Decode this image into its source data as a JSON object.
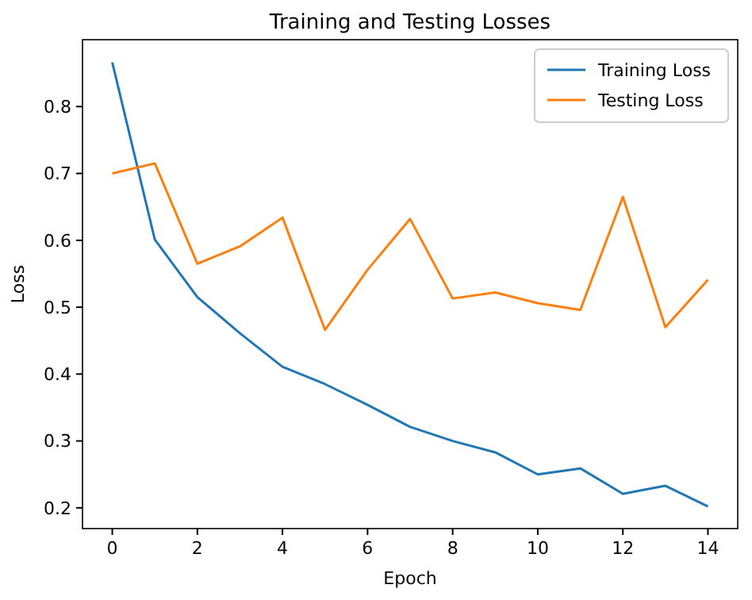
{
  "chart_data": {
    "type": "line",
    "title": "Training and Testing Losses",
    "xlabel": "Epoch",
    "ylabel": "Loss",
    "x": [
      0,
      1,
      2,
      3,
      4,
      5,
      6,
      7,
      8,
      9,
      10,
      11,
      12,
      13,
      14
    ],
    "series": [
      {
        "name": "Training Loss",
        "color": "#1f77b4",
        "values": [
          0.866,
          0.601,
          0.515,
          0.461,
          0.411,
          0.385,
          0.354,
          0.321,
          0.3,
          0.283,
          0.25,
          0.259,
          0.221,
          0.233,
          0.202
        ]
      },
      {
        "name": "Testing Loss",
        "color": "#ff7f0e",
        "values": [
          0.7,
          0.715,
          0.565,
          0.591,
          0.634,
          0.466,
          0.556,
          0.632,
          0.513,
          0.522,
          0.506,
          0.496,
          0.665,
          0.47,
          0.541
        ]
      }
    ],
    "xlim": [
      -0.7,
      14.7
    ],
    "xticks": [
      0,
      2,
      4,
      6,
      8,
      10,
      12,
      14
    ],
    "ylim": [
      0.169,
      0.9
    ],
    "yticks": [
      {
        "value": 0.2,
        "label": "0.2"
      },
      {
        "value": 0.3,
        "label": "0.3"
      },
      {
        "value": 0.4,
        "label": "0.4"
      },
      {
        "value": 0.5,
        "label": "0.5"
      },
      {
        "value": 0.6,
        "label": "0.6"
      },
      {
        "value": 0.7,
        "label": "0.7"
      },
      {
        "value": 0.8,
        "label": "0.8"
      }
    ],
    "legend": "top right",
    "grid": false
  }
}
